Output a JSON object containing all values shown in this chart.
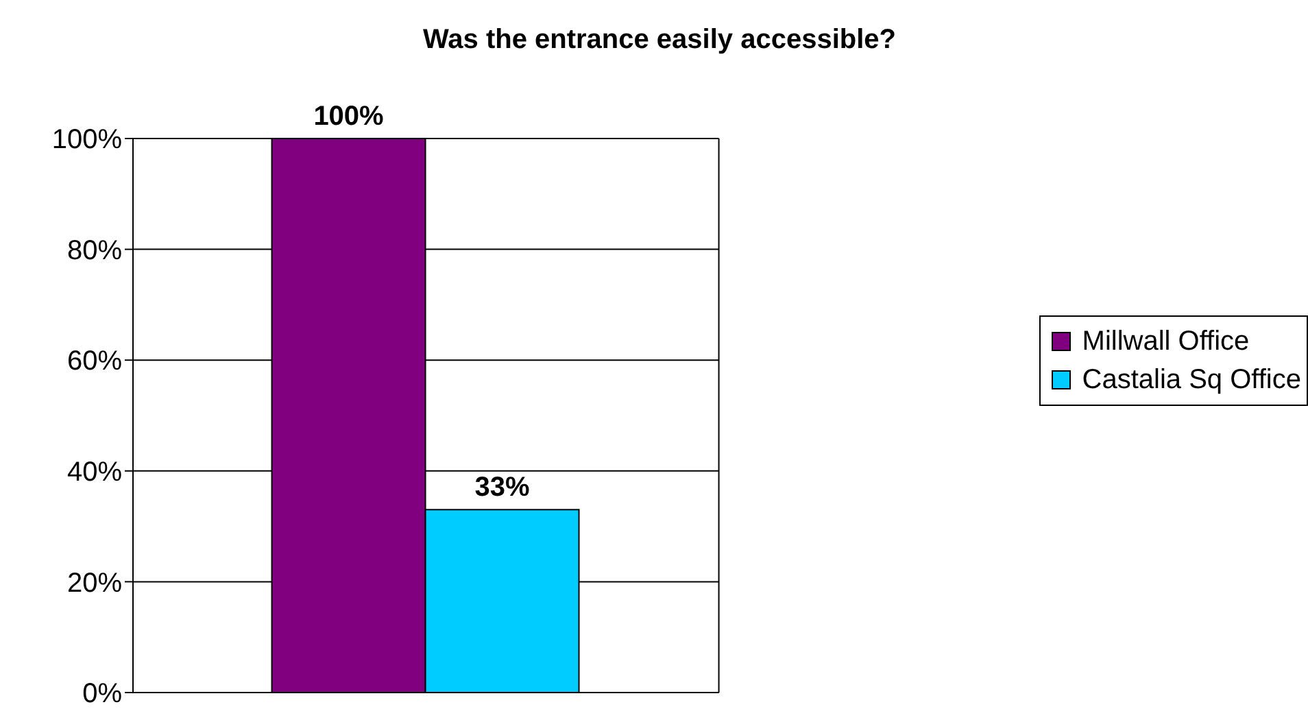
{
  "chart_data": {
    "type": "bar",
    "title": "Was the entrance easily accessible?",
    "categories": [
      null
    ],
    "series": [
      {
        "name": "Millwall Office",
        "color": "#800080",
        "values": [
          100
        ],
        "value_labels": [
          "100%"
        ]
      },
      {
        "name": "Castalia Sq Office",
        "color": "#00ccff",
        "values": [
          33
        ],
        "value_labels": [
          "33%"
        ]
      }
    ],
    "ylim": [
      0,
      100
    ],
    "yticks": [
      {
        "value": 0,
        "label": "0%"
      },
      {
        "value": 20,
        "label": "20%"
      },
      {
        "value": 40,
        "label": "40%"
      },
      {
        "value": 60,
        "label": "60%"
      },
      {
        "value": 80,
        "label": "80%"
      },
      {
        "value": 100,
        "label": "100%"
      }
    ],
    "grid": "y",
    "legend": "right"
  }
}
